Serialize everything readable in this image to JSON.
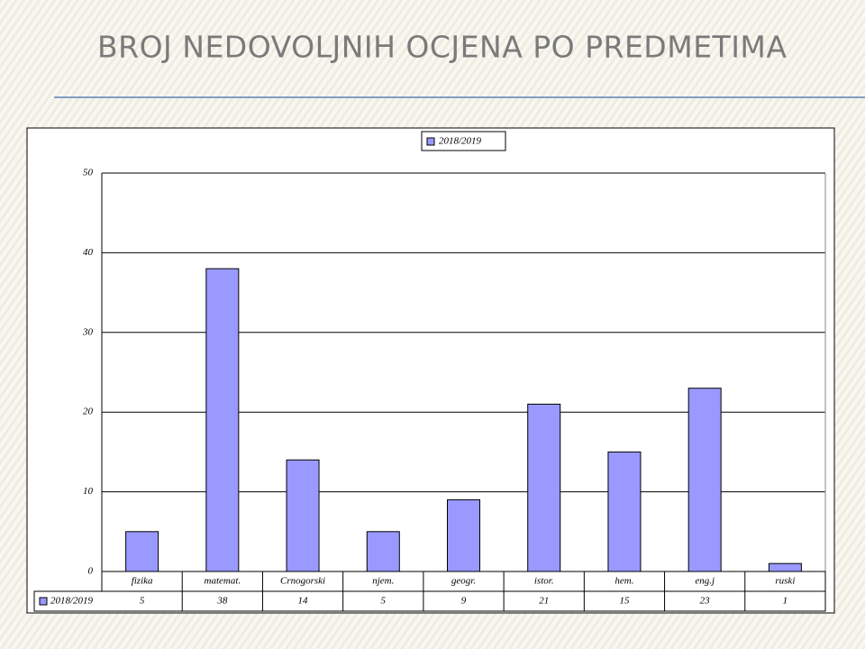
{
  "chart_data": {
    "type": "bar",
    "title": "BROJ NEDOVOLJNIH OCJENA PO PREDMETIMA",
    "categories": [
      "fizika",
      "matemat.",
      "Crnogorski",
      "njem.",
      "geogr.",
      "istor.",
      "hem.",
      "eng.j",
      "ruski"
    ],
    "series": [
      {
        "name": "2018/2019",
        "color": "#9999ff",
        "values": [
          5,
          38,
          14,
          5,
          9,
          21,
          15,
          23,
          1
        ]
      }
    ],
    "ylim": [
      0,
      50
    ],
    "yticks": [
      0,
      10,
      20,
      30,
      40,
      50
    ],
    "grid": true,
    "legend": "top"
  }
}
